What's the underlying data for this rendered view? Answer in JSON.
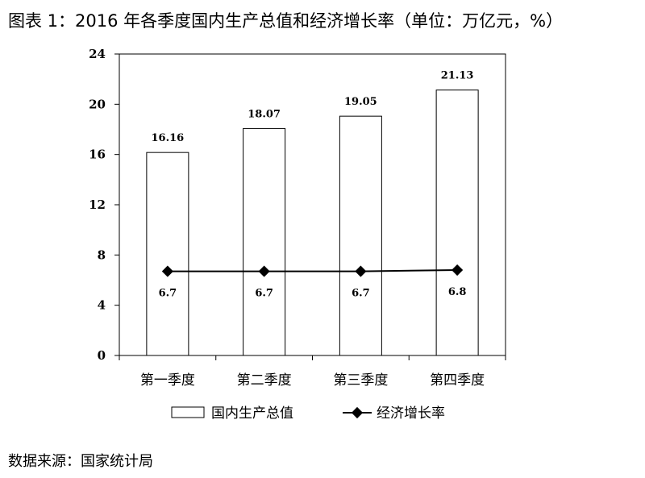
{
  "title": "图表 1：2016 年各季度国内生产总值和经济增长率（单位：万亿元，%）",
  "source": "数据来源：国家统计局",
  "chart_data": {
    "type": "bar",
    "title": "图表 1：2016 年各季度国内生产总值和经济增长率（单位：万亿元，%）",
    "categories": [
      "第一季度",
      "第二季度",
      "第三季度",
      "第四季度"
    ],
    "ylim": [
      0,
      24
    ],
    "yticks": [
      0,
      4,
      8,
      12,
      16,
      20,
      24
    ],
    "yticklabels": [
      "0",
      "4",
      "8",
      "12",
      "16",
      "20",
      "24"
    ],
    "grid": false,
    "legend_position": "bottom",
    "series": [
      {
        "name": "国内生产总值",
        "type": "bar",
        "values": [
          16.16,
          18.07,
          19.05,
          21.13
        ],
        "labels": [
          "16.16",
          "18.07",
          "19.05",
          "21.13"
        ],
        "fill": "#ffffff",
        "stroke": "#000000"
      },
      {
        "name": "经济增长率",
        "type": "line",
        "marker": "diamond",
        "values": [
          6.7,
          6.7,
          6.7,
          6.8
        ],
        "labels": [
          "6.7",
          "6.7",
          "6.7",
          "6.8"
        ],
        "color": "#000000"
      }
    ]
  }
}
